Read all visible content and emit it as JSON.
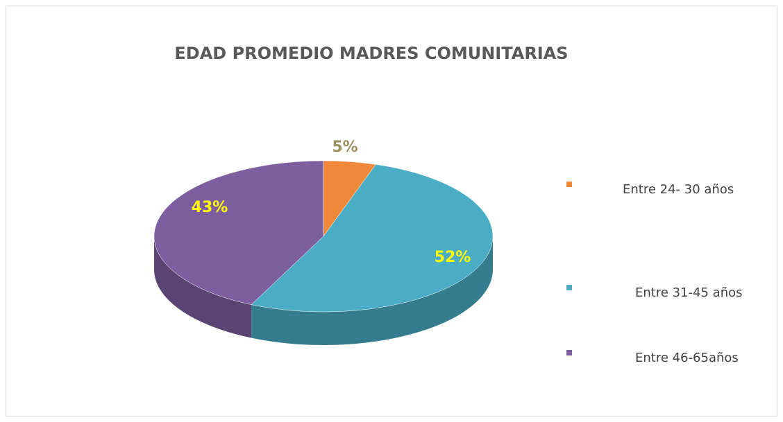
{
  "chart_data": {
    "type": "pie3d",
    "title": "EDAD PROMEDIO MADRES COMUNITARIAS",
    "categories": [
      "Entre 24- 30 años",
      "Entre 31-45 años",
      "Entre 46-65años"
    ],
    "values": [
      5,
      52,
      43
    ],
    "value_labels": [
      "5%",
      "52%",
      "43%"
    ],
    "colors": [
      "#f0883a",
      "#4bacc6",
      "#7d5fa0"
    ],
    "label_colors": [
      "#9c9160",
      "#ffff00",
      "#ffff00"
    ],
    "legend": "right"
  }
}
